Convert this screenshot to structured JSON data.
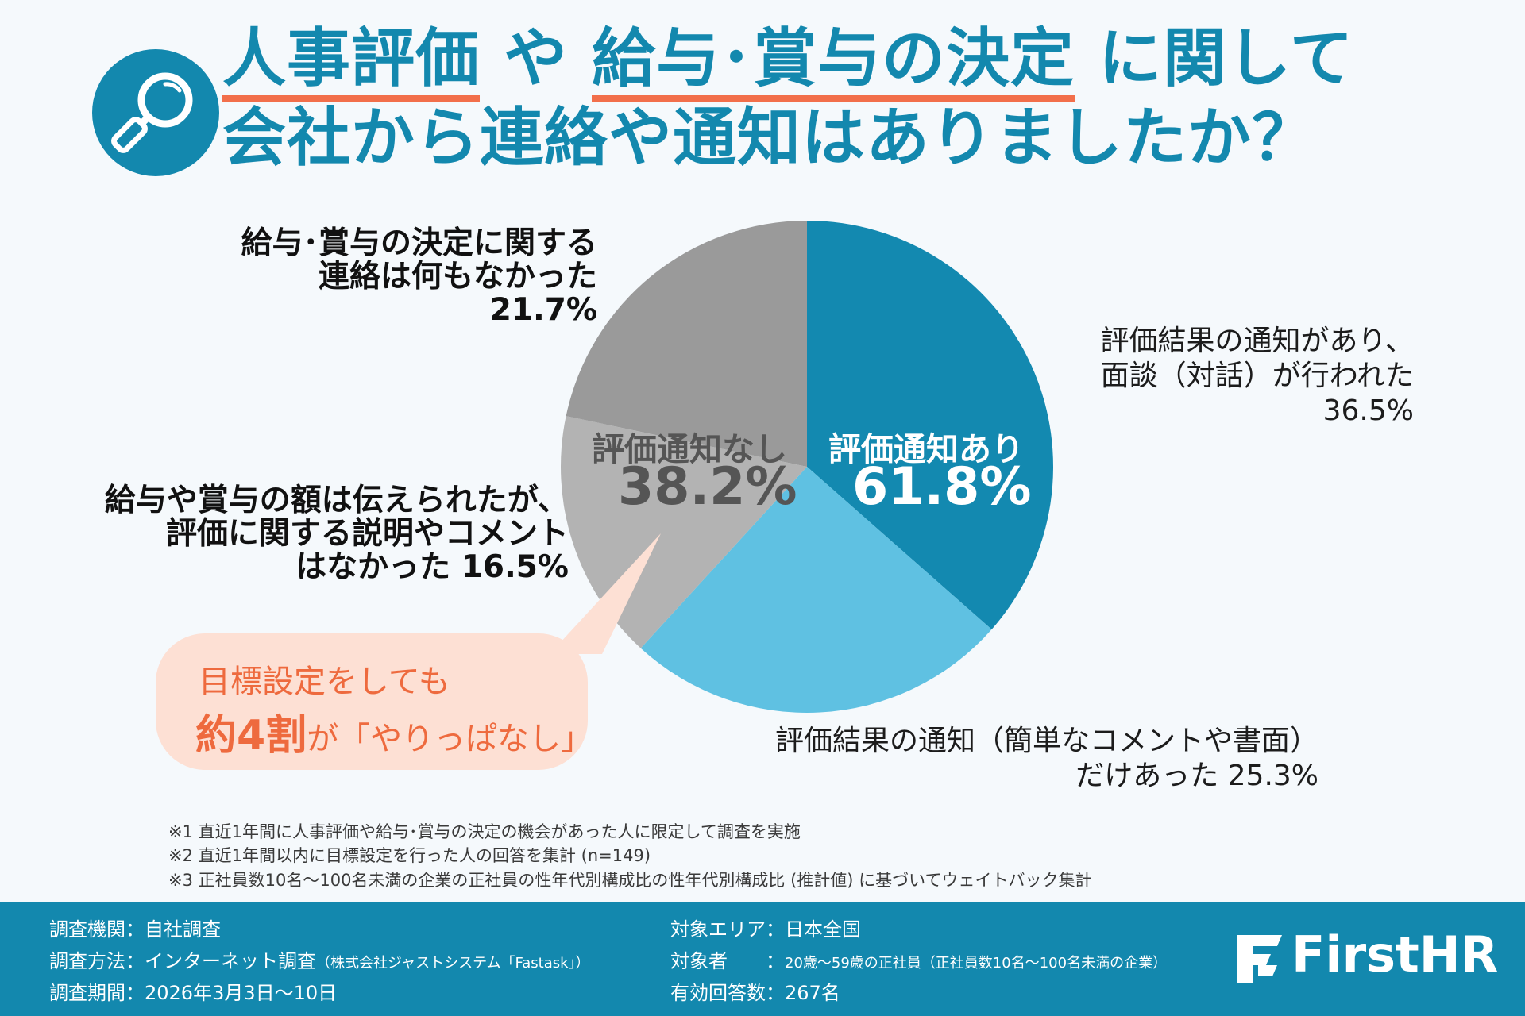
{
  "title": {
    "hl1": "人事評価",
    "mid1": "や",
    "hl2": "給与･賞与の決定",
    "end1": "に関して",
    "line2": "会社から連絡や通知はありましたか？"
  },
  "colors": {
    "brand": "#1388ae",
    "accent": "#f26f4b",
    "slice_dialogue": "#1389b0",
    "slice_simple": "#5fc1e2",
    "slice_amount": "#b3b3b3",
    "slice_none": "#9a9a9a"
  },
  "chart_data": {
    "type": "pie",
    "start": "12 o'clock",
    "direction": "clockwise",
    "slices": [
      {
        "name": "評価結果の通知があり、面談（対話）が行われた",
        "value": 36.5,
        "color": "#1389b0",
        "group": "評価通知あり"
      },
      {
        "name": "評価結果の通知（簡単なコメントや書面）だけあった",
        "value": 25.3,
        "color": "#5fc1e2",
        "group": "評価通知あり"
      },
      {
        "name": "給与や賞与の額は伝えられたが、評価に関する説明やコメントはなかった",
        "value": 16.5,
        "color": "#b3b3b3",
        "group": "評価通知なし"
      },
      {
        "name": "給与･賞与の決定に関する連絡は何もなかった",
        "value": 21.7,
        "color": "#9a9a9a",
        "group": "評価通知なし"
      }
    ],
    "groups": [
      {
        "label": "評価通知あり",
        "value": "61.8%"
      },
      {
        "label": "評価通知なし",
        "value": "38.2%"
      }
    ]
  },
  "labels": {
    "dialogue": {
      "line1": "評価結果の通知があり、",
      "line2": "面談（対話）が行われた",
      "line3": "36.5%"
    },
    "simple": {
      "line1": "評価結果の通知（簡単なコメントや書面）",
      "line2": "だけあった 25.3%"
    },
    "amount": {
      "line1": "給与や賞与の額は伝えられたが、",
      "line2": "評価に関する説明やコメント",
      "line3": "はなかった 16.5%"
    },
    "none": {
      "line1": "給与･賞与の決定に関する",
      "line2": "連絡は何もなかった",
      "line3": "21.7%"
    }
  },
  "callout": {
    "line1": "目標設定をしても",
    "emph": "約4割",
    "rest": "が「やりっぱなし」"
  },
  "notes": [
    "※1 直近1年間に人事評価や給与･賞与の決定の機会があった人に限定して調査を実施",
    "※2 直近1年間以内に目標設定を行った人の回答を集計 (n=149)",
    "※3 正社員数10名～100名未満の企業の正社員の性年代別構成比の性年代別構成比 (推計値) に基づいてウェイトバック集計"
  ],
  "footer": {
    "org_label": "調査機関：",
    "org_value": "自社調査",
    "method_label": "調査方法：",
    "method_value": "インターネット調査",
    "method_note": "（株式会社ジャストシステム「Fastask」）",
    "period_label": "調査期間：",
    "period_value": "2026年3月3日～10日",
    "area_label": "対象エリア：",
    "area_value": "日本全国",
    "target_label": "対象者　　：",
    "target_value": "20歳～59歳の正社員",
    "target_note": "（正社員数10名～100名未満の企業）",
    "count_label": "有効回答数：",
    "count_value": "267名",
    "logo": "FirstHR",
    "logo_icon": "firsthr-logo-icon",
    "title_icon": "magnifier-icon"
  }
}
